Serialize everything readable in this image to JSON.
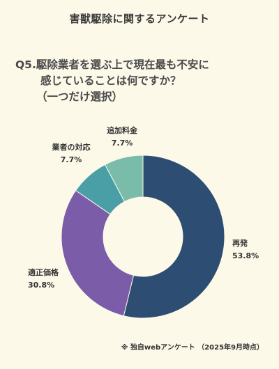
{
  "header": {
    "title": "害獣駆除に関するアンケート"
  },
  "question": {
    "line1": "Q5.駆除業者を選ぶ上で現在最も不安に",
    "line2": "感じていることは何ですか？",
    "line3": "（一つだけ選択）"
  },
  "chart_data": {
    "type": "pie",
    "variant": "donut",
    "start_angle_deg": 0,
    "direction": "clockwise",
    "slices": [
      {
        "label": "再発",
        "value": 53.8,
        "display": "53.8%",
        "color": "#2e4d73"
      },
      {
        "label": "適正価格",
        "value": 30.8,
        "display": "30.8%",
        "color": "#7a5ca8"
      },
      {
        "label": "業者の対応",
        "value": 7.7,
        "display": "7.7%",
        "color": "#4a9fa6"
      },
      {
        "label": "追加料金",
        "value": 7.7,
        "display": "7.7%",
        "color": "#7abcaa"
      }
    ]
  },
  "footnote": "※ 独自webアンケート （2025年9月時点）"
}
